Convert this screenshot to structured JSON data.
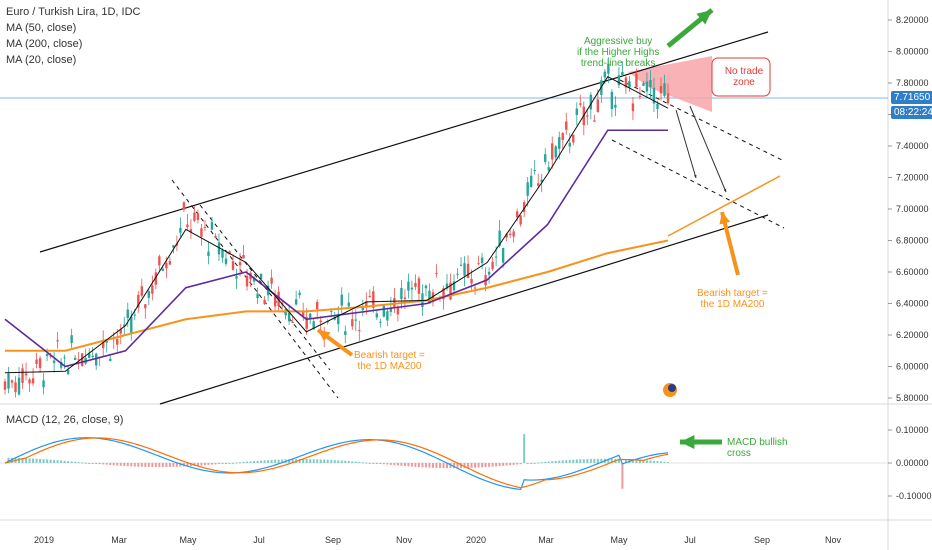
{
  "header": {
    "title": "Euro / Turkish Lira, 1D, IDC",
    "indicators": [
      "MA (50, close)",
      "MA (200, close)",
      "MA (20, close)"
    ]
  },
  "price_axis": {
    "ticks": [
      "8.20000",
      "8.00000",
      "7.80000",
      "7.60000",
      "7.40000",
      "7.20000",
      "7.00000",
      "6.80000",
      "6.60000",
      "6.40000",
      "6.20000",
      "6.00000",
      "5.80000"
    ],
    "last_price": "7.71650",
    "countdown": "08:22:24"
  },
  "macd": {
    "label": "MACD (12, 26, close, 9)",
    "ticks": [
      "0.10000",
      "0.00000",
      "-0.10000"
    ]
  },
  "time_axis": {
    "labels": [
      "2019",
      "Mar",
      "May",
      "Jul",
      "Sep",
      "Nov",
      "2020",
      "Mar",
      "May",
      "Jul",
      "Sep",
      "Nov"
    ]
  },
  "annotations": {
    "aggressive_buy": [
      "Aggressive buy",
      "if the Higher Highs",
      "trend-line breaks"
    ],
    "no_trade": [
      "No trade",
      "zone"
    ],
    "bearish_left": [
      "Bearish target =",
      "the 1D MA200"
    ],
    "bearish_right": [
      "Bearish target =",
      "the 1D MA200"
    ],
    "macd_cross": [
      "MACD bullish",
      "cross"
    ]
  },
  "colors": {
    "up": "#26a69a",
    "down": "#ef5350",
    "ma50": "#5b2a9e",
    "ma200": "#f7931a",
    "ma20": "#111111",
    "macd": "#2196f3",
    "signal": "#ff6d00",
    "green": "#3aa83a",
    "orange": "#f7931a"
  },
  "logo_icon": "tradingview-logo-icon",
  "chart_data": {
    "type": "line",
    "xlabel": "",
    "ylabel": "",
    "ylim": [
      5.75,
      8.28
    ],
    "x": [
      "2018-12",
      "2019-01",
      "2019-03",
      "2019-05",
      "2019-06",
      "2019-08",
      "2019-10",
      "2019-12",
      "2020-02",
      "2020-03",
      "2020-05",
      "2020-06"
    ],
    "series": [
      {
        "values": [
          5.9,
          6.05,
          6.2,
          6.95,
          6.6,
          6.3,
          6.35,
          6.5,
          6.6,
          7.3,
          7.78,
          7.72
        ]
      },
      {
        "values": [
          6.3,
          6.0,
          6.1,
          6.5,
          6.6,
          6.3,
          6.35,
          6.4,
          6.55,
          6.9,
          7.5,
          7.5
        ]
      },
      {
        "values": [
          6.1,
          6.1,
          6.2,
          6.3,
          6.35,
          6.35,
          6.38,
          6.42,
          6.5,
          6.6,
          6.72,
          6.8
        ]
      }
    ]
  }
}
